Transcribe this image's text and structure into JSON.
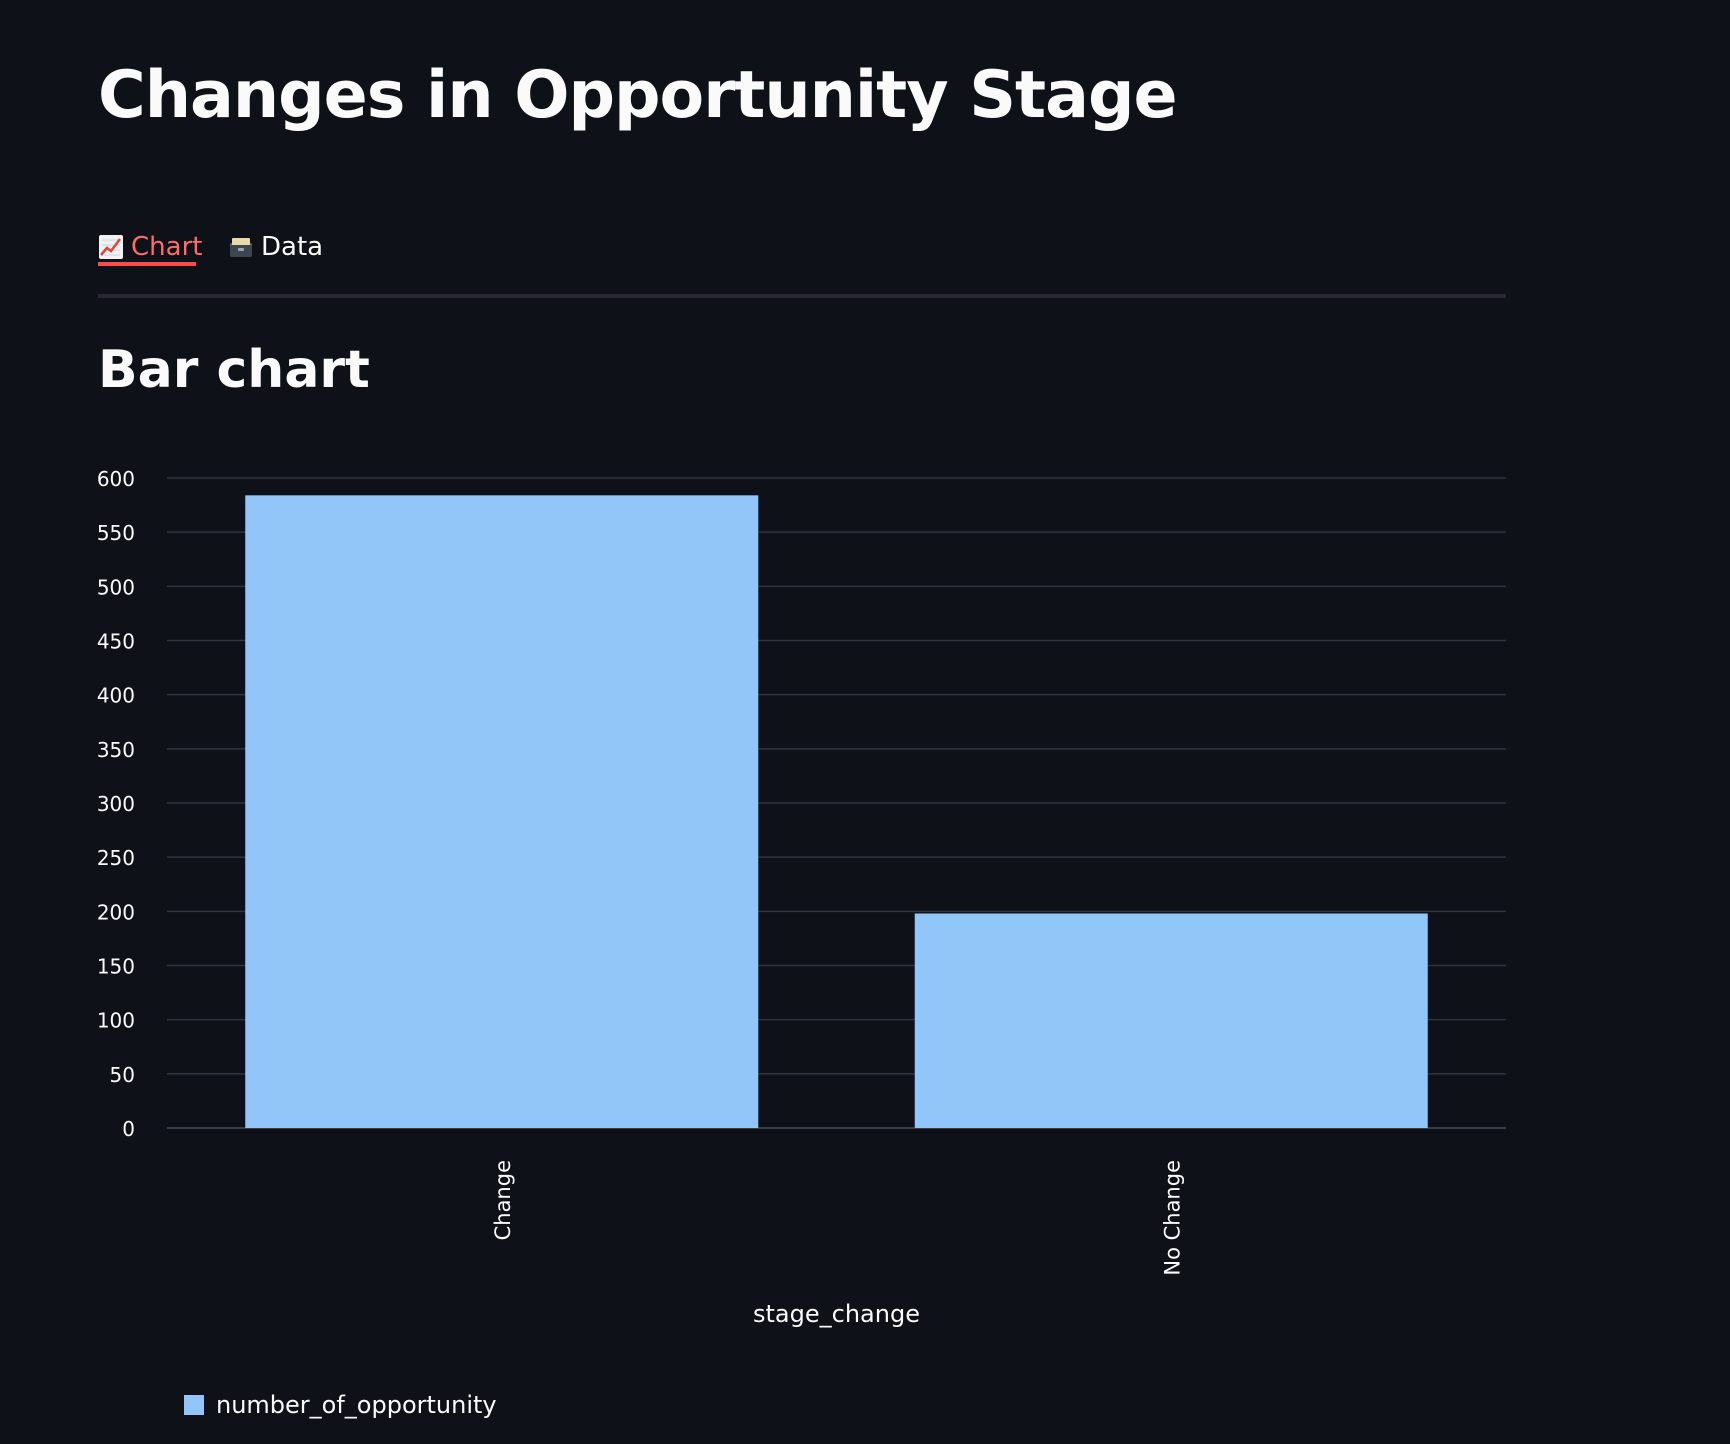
{
  "page": {
    "title": "Changes in Opportunity Stage"
  },
  "tabs": [
    {
      "label": "Chart",
      "icon": "chart-increasing-icon",
      "active": true
    },
    {
      "label": "Data",
      "icon": "card-file-box-icon",
      "active": false
    }
  ],
  "section": {
    "title": "Bar chart"
  },
  "colors": {
    "background": "#0e1117",
    "bar": "#92c5f8",
    "accent": "#ff4b4b",
    "grid": "#31333f"
  },
  "chart_data": {
    "type": "bar",
    "categories": [
      "Change",
      "No Change"
    ],
    "series": [
      {
        "name": "number_of_opportunity",
        "values": [
          584,
          198
        ]
      }
    ],
    "xlabel": "stage_change",
    "ylabel": "",
    "ylim": [
      0,
      600
    ],
    "yticks": [
      0,
      50,
      100,
      150,
      200,
      250,
      300,
      350,
      400,
      450,
      500,
      550,
      600
    ],
    "grid": true,
    "legend_position": "bottom-left"
  }
}
